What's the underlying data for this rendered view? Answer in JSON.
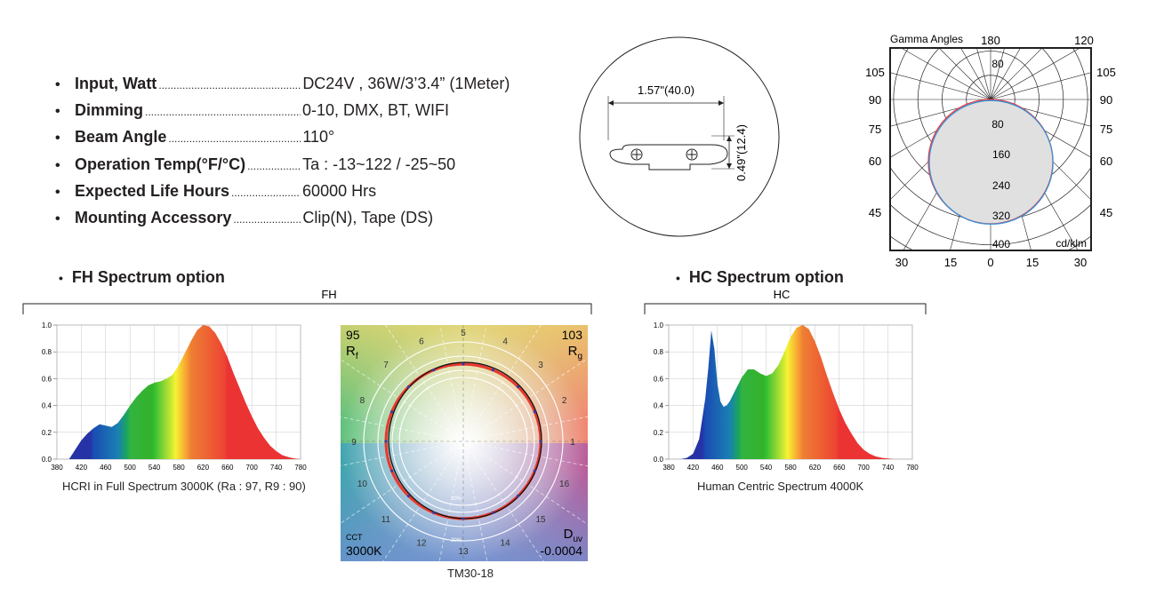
{
  "specs": [
    {
      "label": "Input, Watt",
      "value": "DC24V ,  36W/3’3.4” (1Meter)"
    },
    {
      "label": "Dimming",
      "value": "0-10,  DMX, BT, WIFI"
    },
    {
      "label": "Beam Angle",
      "value": "110°"
    },
    {
      "label": "Operation Temp(°F/°C)",
      "value": "Ta : -13~122 / -25~50"
    },
    {
      "label": "Expected Life Hours",
      "value": "60000 Hrs"
    },
    {
      "label": "Mounting Accessory",
      "value": "Clip(N),  Tape (DS)"
    }
  ],
  "profile": {
    "width_label": "1.57\"(40.0)",
    "height_label": "0.49\"(12.4)"
  },
  "polar": {
    "title": "Gamma Angles",
    "top_labels": [
      "180",
      "120"
    ],
    "side_labels_left": [
      "105",
      "90",
      "75",
      "60",
      "45"
    ],
    "side_labels_right": [
      "105",
      "90",
      "75",
      "60",
      "45"
    ],
    "radial_labels": [
      "80",
      "80",
      "160",
      "240",
      "320",
      "400"
    ],
    "bottom_labels": [
      "30",
      "15",
      "0",
      "15",
      "30"
    ],
    "unit": "cd/klm",
    "colors": {
      "curve_a": "#e8373f",
      "curve_b": "#3a93d6",
      "fill": "#e0e0e0"
    }
  },
  "fh": {
    "section_title": "FH Spectrum option",
    "bracket_label": "FH",
    "caption": "HCRI in Full Spectrum 3000K (Ra : 97, R9 : 90)"
  },
  "hc": {
    "section_title": "HC Spectrum option",
    "bracket_label": "HC",
    "caption": "Human Centric Spectrum 4000K"
  },
  "tm30": {
    "caption": "TM30-18",
    "rf_value": "95",
    "rf_label": "R",
    "rf_sub": "f",
    "rg_value": "103",
    "rg_label": "R",
    "rg_sub": "g",
    "cct_label": "CCT",
    "cct_value": "3000K",
    "duv_label": "D",
    "duv_sub": "uv",
    "duv_value": "-0.0004",
    "hue_bins": [
      "1",
      "2",
      "3",
      "4",
      "5",
      "6",
      "7",
      "8",
      "9",
      "10",
      "11",
      "12",
      "13",
      "14",
      "15",
      "16"
    ],
    "pct_labels": [
      "20%",
      "20%"
    ]
  },
  "chart_data": [
    {
      "type": "area",
      "name_ref": "fh",
      "x": [
        400,
        410,
        420,
        430,
        440,
        450,
        460,
        470,
        480,
        490,
        500,
        510,
        520,
        530,
        540,
        550,
        560,
        570,
        580,
        590,
        600,
        610,
        620,
        630,
        640,
        650,
        660,
        670,
        680,
        690,
        700,
        710,
        720,
        730,
        740,
        750,
        760,
        770,
        780
      ],
      "y": [
        0.0,
        0.07,
        0.14,
        0.19,
        0.23,
        0.26,
        0.25,
        0.24,
        0.27,
        0.33,
        0.4,
        0.46,
        0.51,
        0.55,
        0.57,
        0.58,
        0.6,
        0.63,
        0.7,
        0.79,
        0.88,
        0.96,
        1.0,
        0.99,
        0.94,
        0.86,
        0.76,
        0.64,
        0.53,
        0.42,
        0.32,
        0.23,
        0.16,
        0.1,
        0.06,
        0.03,
        0.015,
        0.005,
        0.0
      ],
      "xticks": [
        380,
        420,
        460,
        500,
        540,
        580,
        620,
        660,
        700,
        740,
        780
      ],
      "yticks": [
        0.0,
        0.2,
        0.4,
        0.6,
        0.8,
        1.0
      ],
      "xlim": [
        380,
        780
      ],
      "ylim": [
        0,
        1.0
      ],
      "grid": true
    },
    {
      "type": "area",
      "name_ref": "hc",
      "x": [
        400,
        410,
        420,
        430,
        440,
        445,
        450,
        455,
        460,
        465,
        470,
        475,
        480,
        490,
        500,
        510,
        520,
        530,
        540,
        550,
        560,
        570,
        580,
        590,
        600,
        610,
        620,
        630,
        640,
        650,
        660,
        670,
        680,
        690,
        700,
        710,
        720,
        730,
        740,
        750,
        760,
        770,
        780
      ],
      "y": [
        0.0,
        0.01,
        0.04,
        0.15,
        0.45,
        0.68,
        0.96,
        0.82,
        0.56,
        0.43,
        0.39,
        0.4,
        0.43,
        0.52,
        0.61,
        0.67,
        0.67,
        0.64,
        0.62,
        0.64,
        0.7,
        0.8,
        0.91,
        0.98,
        1.0,
        0.97,
        0.88,
        0.76,
        0.62,
        0.49,
        0.37,
        0.27,
        0.19,
        0.12,
        0.07,
        0.04,
        0.02,
        0.01,
        0.005,
        0.0,
        0.0,
        0.0,
        0.0
      ],
      "xticks": [
        380,
        420,
        460,
        500,
        540,
        580,
        620,
        660,
        700,
        740,
        780
      ],
      "yticks": [
        0.0,
        0.2,
        0.4,
        0.6,
        0.8,
        1.0
      ],
      "xlim": [
        380,
        780
      ],
      "ylim": [
        0,
        1.0
      ],
      "grid": true
    }
  ]
}
